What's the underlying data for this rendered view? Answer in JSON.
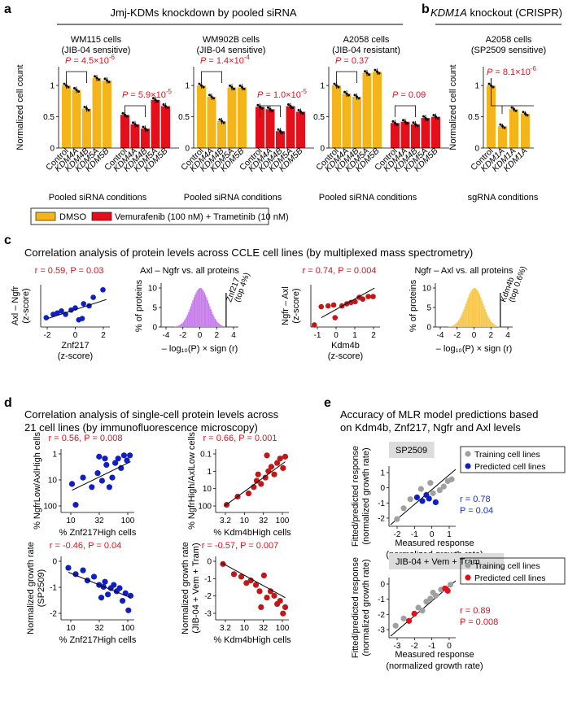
{
  "panel_labels": {
    "a": "a",
    "b": "b",
    "c": "c",
    "d": "d",
    "e": "e"
  },
  "colors": {
    "orange": "#F5B41A",
    "red": "#E3101B",
    "blue": "#1020C0",
    "darkred": "#C01818",
    "purple": "#C77DEB",
    "gold": "#F8C74B",
    "gray": "#A0A0A0",
    "pval_red": "#E3101B",
    "pval_blue": "#1A2FC8"
  },
  "panel_a": {
    "title": "Jmj-KDMs knockdown by pooled siRNA",
    "ylabel": "Normalized cell count",
    "xlabel": "Pooled siRNA conditions",
    "legend": {
      "dmso": "DMSO",
      "vem": "Vemurafenib (100 nM) + Trametinib (10 nM)"
    },
    "cells": [
      {
        "name": "WM115 cells",
        "sub": "(JIB-04 sensitive)",
        "p1": "P = 4.5×10",
        "p1exp": "-6",
        "p2": "P = 5.9×10",
        "p2exp": "-5"
      },
      {
        "name": "WM902B cells",
        "sub": "(JIB-04 sensitive)",
        "p1": "P = 1.4×10",
        "p1exp": "-4",
        "p2": "P = 1.0×10",
        "p2exp": "-5"
      },
      {
        "name": "A2058 cells",
        "sub": "(JIB-04 resistant)",
        "p1": "P = 0.37",
        "p1exp": "",
        "p2": "P = 0.09",
        "p2exp": ""
      }
    ],
    "conditions": [
      "Control",
      "KDM4A",
      "KDM4B",
      "KDM5A",
      "KDM5B"
    ],
    "yticks": [
      "0",
      "0.5",
      "1"
    ]
  },
  "panel_b": {
    "title": "KDM1A knockout (CRISPR)",
    "title_italic": "KDM1A",
    "title_rest": " knockout (CRISPR)",
    "cell": "A2058 cells",
    "sub": "(SP2509 sensitive)",
    "p": "P = 8.1×10",
    "pexp": "-6",
    "ylabel": "Normalized cell count",
    "xlabel": "sgRNA conditions",
    "conditions": [
      "Control",
      "KDM1A",
      "KDM1A",
      "KDM1A"
    ],
    "yticks": [
      "0",
      "0.5",
      "1"
    ]
  },
  "panel_c": {
    "title": "Correlation analysis of protein levels across CCLE cell lines (by multiplexed mass spectrometry)",
    "s1": {
      "stat": "r = 0.59, P = 0.03",
      "ylabel1": "Axl – Ngfr",
      "ylabel2": "(z-score)",
      "xlabel1": "Znf217",
      "xlabel2": "(z-score)",
      "xticks": [
        "-2",
        "0",
        "2"
      ]
    },
    "h1": {
      "title": "Axl – Ngfr vs. all proteins",
      "ylabel": "% of proteins",
      "xlabel": "– log₁₀(P) × sign (r)",
      "annot1": "Znf217",
      "annot2": "(top 4%)",
      "xticks": [
        "-4",
        "-2",
        "0",
        "2",
        "4"
      ],
      "yticks": [
        "0",
        "5",
        "10"
      ]
    },
    "s2": {
      "stat": "r = 0.74, P = 0.004",
      "ylabel1": "Ngfr – Axl",
      "ylabel2": "(z-score)",
      "xlabel1": "Kdm4b",
      "xlabel2": "(z-score)",
      "xticks": [
        "-1",
        "0",
        "1",
        "2"
      ]
    },
    "h2": {
      "title": "Ngfr – Axl vs. all proteins",
      "ylabel": "% of proteins",
      "xlabel": "– log₁₀(P) × sign (r)",
      "annot1": "Kdm4b",
      "annot2": "(top 0.6%)",
      "xticks": [
        "-4",
        "-2",
        "0",
        "2",
        "4"
      ],
      "yticks": [
        "0",
        "5",
        "10"
      ]
    }
  },
  "panel_d": {
    "title1": "Correlation analysis of single-cell protein levels across",
    "title2": "21 cell lines (by immunofluorescence microscopy)",
    "p1": {
      "stat": "r = 0.56, P = 0.008",
      "ylabel": "% NgfrLow/AxlHigh cells",
      "xlabel": "% Znf217High cells",
      "xticks": [
        "10",
        "32",
        "100"
      ],
      "yticks": [
        "1",
        "10",
        "100"
      ]
    },
    "p2": {
      "stat": "r = 0.66, P = 0.001",
      "ylabel": "% NgfrHigh/AxlLow cells",
      "xlabel": "% Kdm4bHigh cells",
      "xticks": [
        "3.2",
        "10",
        "32",
        "100"
      ],
      "yticks": [
        "0.1",
        "1",
        "10",
        "100"
      ]
    },
    "p3": {
      "stat": "r = -0.46, P = 0.04",
      "ylabel1": "Normalized growth rate",
      "ylabel2": "(SP2509)",
      "xlabel": "% Znf217High cells",
      "xticks": [
        "10",
        "32",
        "100"
      ],
      "yticks": [
        "0",
        "-1",
        "-2"
      ]
    },
    "p4": {
      "stat": "r = -0.57, P = 0.007",
      "ylabel1": "Normalized growth rate",
      "ylabel2": "(JIB-04 + Vem + Tram)",
      "xlabel": "% Kdm4bHigh cells",
      "xticks": [
        "3.2",
        "10",
        "32",
        "100"
      ],
      "yticks": [
        "0",
        "-1",
        "-2",
        "-3"
      ]
    }
  },
  "panel_e": {
    "title1": "Accuracy of MLR model predictions based",
    "title2": "on Kdm4b, Znf217, Ngfr and Axl levels",
    "top": {
      "label": "SP2509",
      "legend_train": "Training cell lines",
      "legend_pred": "Predicted cell lines",
      "r": "r = 0.78",
      "p": "P = 0.04",
      "ylabel1": "Fitted/predicted response",
      "ylabel2": "(normalized growth rate)",
      "xlabel1": "Measured response",
      "xlabel2": "(normalized growth rate)",
      "xticks": [
        "-2",
        "-1",
        "0",
        "1"
      ],
      "yticks": [
        "-2",
        "-1",
        "0",
        "1"
      ]
    },
    "bottom": {
      "label": "JIB-04 + Vem + Tram",
      "legend_train": "Training cell lines",
      "legend_pred": "Predicted cell lines",
      "r": "r = 0.89",
      "p": "P = 0.008",
      "ylabel1": "Fitted/predicted response",
      "ylabel2": "(normalized growth rate)",
      "xlabel1": "Measured response",
      "xlabel2": "(normalized growth rate)",
      "xticks": [
        "-3",
        "-2",
        "-1",
        "0"
      ],
      "yticks": [
        "-3",
        "-2",
        "-1",
        "0"
      ]
    }
  },
  "chart_data": [
    {
      "type": "bar",
      "panel": "a-WM115",
      "categories": [
        "Control",
        "KDM4A",
        "KDM4B",
        "KDM5A",
        "KDM5B"
      ],
      "series": [
        {
          "name": "DMSO",
          "values": [
            1.0,
            0.93,
            0.63,
            1.12,
            1.08
          ]
        },
        {
          "name": "Vemurafenib (100 nM) + Trametinib (10 nM)",
          "values": [
            0.53,
            0.38,
            0.31,
            0.77,
            0.67
          ]
        }
      ],
      "ylim": [
        0,
        1.3
      ]
    },
    {
      "type": "bar",
      "panel": "a-WM902B",
      "categories": [
        "Control",
        "KDM4A",
        "KDM4B",
        "KDM5A",
        "KDM5B"
      ],
      "series": [
        {
          "name": "DMSO",
          "values": [
            1.0,
            0.82,
            0.43,
            0.97,
            0.97
          ]
        },
        {
          "name": "Vemurafenib (100 nM) + Trametinib (10 nM)",
          "values": [
            0.66,
            0.62,
            0.27,
            0.67,
            0.58
          ]
        }
      ],
      "ylim": [
        0,
        1.3
      ]
    },
    {
      "type": "bar",
      "panel": "a-A2058",
      "categories": [
        "Control",
        "KDM4A",
        "KDM4B",
        "KDM5A",
        "KDM5B"
      ],
      "series": [
        {
          "name": "DMSO",
          "values": [
            1.0,
            0.87,
            0.82,
            1.2,
            1.22
          ]
        },
        {
          "name": "Vemurafenib (100 nM) + Trametinib (10 nM)",
          "values": [
            0.4,
            0.42,
            0.38,
            0.48,
            0.5
          ]
        }
      ],
      "ylim": [
        0,
        1.3
      ]
    },
    {
      "type": "bar",
      "panel": "b",
      "categories": [
        "Control",
        "KDM1A",
        "KDM1A",
        "KDM1A"
      ],
      "series": [
        {
          "name": "DMSO",
          "values": [
            1.0,
            0.35,
            0.62,
            0.55
          ]
        }
      ],
      "ylim": [
        0,
        1.3
      ]
    }
  ]
}
